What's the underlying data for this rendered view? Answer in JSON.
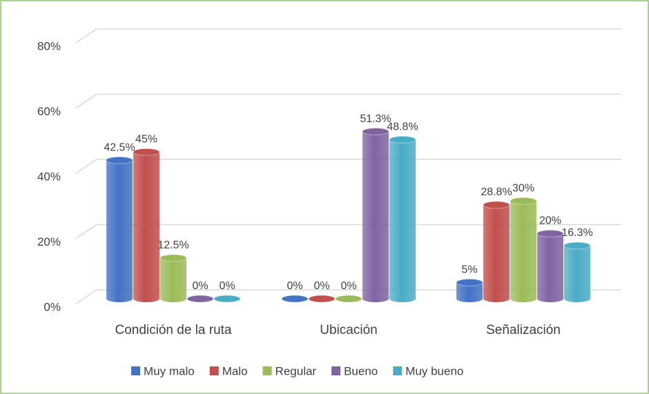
{
  "chart_data": {
    "type": "bar3d",
    "categories": [
      "Condición de la ruta",
      "Ubicación",
      "Señalización"
    ],
    "series": [
      {
        "name": "Muy malo",
        "color": "#4472c4",
        "values": [
          42.5,
          0,
          5
        ],
        "value_labels": [
          "42.5%",
          "0%",
          "5%"
        ]
      },
      {
        "name": "Malo",
        "color": "#c0504d",
        "values": [
          45,
          0,
          28.8
        ],
        "value_labels": [
          "45%",
          "0%",
          "28.8%"
        ]
      },
      {
        "name": "Regular",
        "color": "#9bbb59",
        "values": [
          12.5,
          0,
          30
        ],
        "value_labels": [
          "12.5%",
          "0%",
          "30%"
        ]
      },
      {
        "name": "Bueno",
        "color": "#8064a2",
        "values": [
          0,
          51.3,
          20
        ],
        "value_labels": [
          "0%",
          "51.3%",
          "20%"
        ]
      },
      {
        "name": "Muy bueno",
        "color": "#4bacc6",
        "values": [
          0,
          48.8,
          16.3
        ],
        "value_labels": [
          "0%",
          "48.8%",
          "16.3%"
        ]
      }
    ],
    "ylim": [
      0,
      80
    ],
    "yticks": [
      {
        "value": 0,
        "label": "0%"
      },
      {
        "value": 20,
        "label": "20%"
      },
      {
        "value": 40,
        "label": "40%"
      },
      {
        "value": 60,
        "label": "60%"
      },
      {
        "value": 80,
        "label": "80%"
      }
    ],
    "grid": true,
    "legend": "bottom"
  }
}
